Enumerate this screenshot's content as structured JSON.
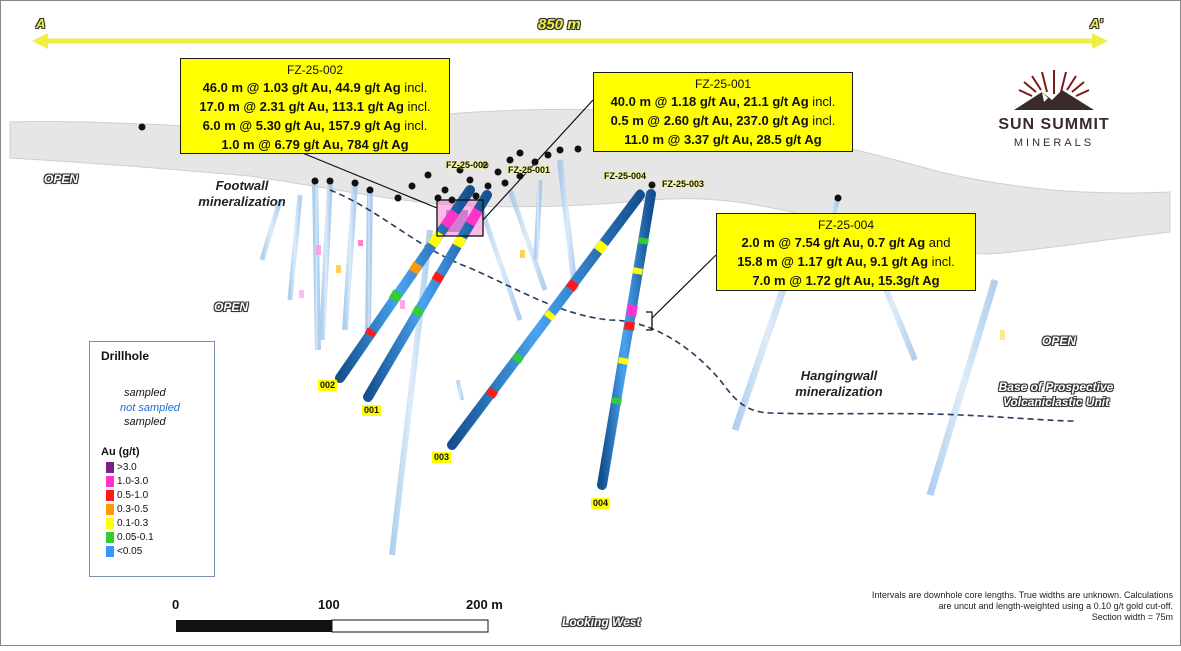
{
  "section": {
    "start_label": "A",
    "end_label": "A'",
    "length_label": "850 m"
  },
  "logo": {
    "name": "SUN SUMMIT",
    "sub": "MINERALS"
  },
  "callouts": [
    {
      "hole": "FZ-25-002",
      "lines": [
        {
          "text": "46.0 m @ 1.03 g/t Au, 44.9 g/t Ag",
          "suffix": " incl."
        },
        {
          "text": "17.0 m @ 2.31 g/t Au, 113.1 g/t Ag",
          "suffix": " incl."
        },
        {
          "text": "6.0 m @ 5.30 g/t Au, 157.9 g/t Ag",
          "suffix": " incl."
        },
        {
          "text": "1.0 m @ 6.79 g/t Au, 784 g/t Ag",
          "suffix": ""
        }
      ]
    },
    {
      "hole": "FZ-25-001",
      "lines": [
        {
          "text": "40.0 m @ 1.18 g/t Au, 21.1 g/t Ag",
          "suffix": " incl."
        },
        {
          "text": "0.5 m @ 2.60 g/t Au, 237.0 g/t Ag",
          "suffix": " incl."
        },
        {
          "text": "11.0 m @ 3.37 g/t Au, 28.5 g/t Ag",
          "suffix": ""
        }
      ]
    },
    {
      "hole": "FZ-25-004",
      "lines": [
        {
          "text": "2.0 m @ 7.54 g/t Au, 0.7 g/t Ag",
          "suffix": " and"
        },
        {
          "text": "15.8 m @ 1.17 g/t Au, 9.1 g/t Ag",
          "suffix": " incl."
        },
        {
          "text": "7.0 m @ 1.72 g/t Au, 15.3g/t Ag",
          "suffix": ""
        }
      ]
    }
  ],
  "hole_collar_labels": {
    "h002": "FZ-25-002",
    "h001": "FZ-25-001",
    "h004": "FZ-25-004",
    "h003": "FZ-25-003"
  },
  "hole_end_labels": {
    "h002": "002",
    "h001": "001",
    "h003": "003",
    "h004": "004"
  },
  "map_labels": {
    "footwall": "Footwall\nmineralization",
    "hangingwall": "Hangingwall\nmineralization",
    "base_unit": "Base of Prospective\nVolcaniclastic Unit",
    "open": "OPEN",
    "looking": "Looking West"
  },
  "legend": {
    "title": "Drillhole",
    "sampled": "sampled",
    "not_sampled": "not sampled",
    "au_title": "Au (g/t)",
    "classes": [
      {
        "label": ">3.0",
        "color": "#7b1f8a"
      },
      {
        "label": "1.0-3.0",
        "color": "#ff33cc"
      },
      {
        "label": "0.5-1.0",
        "color": "#ff1a1a"
      },
      {
        "label": "0.3-0.5",
        "color": "#ff9900"
      },
      {
        "label": "0.1-0.3",
        "color": "#ffff00"
      },
      {
        "label": "0.05-0.1",
        "color": "#33cc33"
      },
      {
        "label": "<0.05",
        "color": "#3399ff"
      }
    ]
  },
  "scale_bar": {
    "labels": [
      "0",
      "100",
      "200 m"
    ]
  },
  "footnote": {
    "line1": "Intervals are downhole core lengths. True widths are unknown. Calculations",
    "line2": "are uncut and length-weighted using a 0.10 g/t gold cut-off.",
    "line3": "Section width = 75m"
  },
  "colors": {
    "callout_bg": "#ffff00",
    "hole_blue": "#2a7fd4",
    "arrow": "#ffff33"
  }
}
